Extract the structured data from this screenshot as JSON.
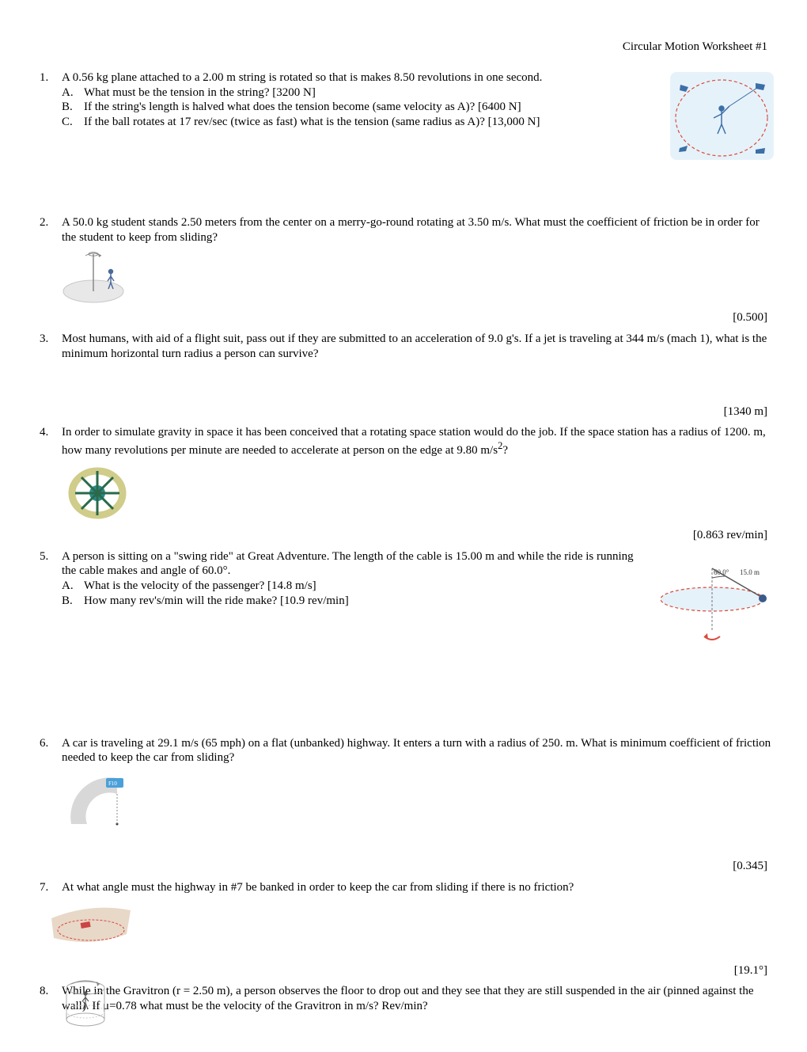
{
  "title": "Circular Motion Worksheet #1",
  "problems": [
    {
      "num": "1.",
      "text": "A 0.56 kg plane attached to a 2.00 m string is rotated so that is makes 8.50 revolutions in one second.",
      "subs": [
        {
          "letter": "A.",
          "text": "What must be the tension in the string?  [3200 N]"
        },
        {
          "letter": "B.",
          "text": "If the string's length is halved what does the tension become (same velocity as A)?  [6400 N]"
        },
        {
          "letter": "C.",
          "text": "If the ball rotates at 17 rev/sec (twice as fast) what is the tension (same radius as A)?  [13,000 N]"
        }
      ]
    },
    {
      "num": "2.",
      "text": "A 50.0 kg student stands 2.50 meters from the center on a merry-go-round rotating at 3.50 m/s. What must the coefficient of friction be in order for the student to keep from sliding?",
      "answer": "[0.500]"
    },
    {
      "num": "3.",
      "text": "Most humans, with aid of a flight suit, pass out if they are submitted to an acceleration of 9.0 g's. If a jet is traveling at 344 m/s (mach 1), what is the minimum horizontal turn radius a person can survive?",
      "answer": "[1340 m]"
    },
    {
      "num": "4.",
      "text_html": "In order to simulate gravity in space it has been conceived that a rotating space station would do the job. If the space station has a radius of 1200. m, how many revolutions per minute are needed to accelerate at person on the edge at 9.80 m/s<sup>2</sup>?",
      "answer": "[0.863 rev/min]"
    },
    {
      "num": "5.",
      "text": "A person is sitting on a \"swing ride\" at Great Adventure. The length of the cable is 15.00 m and while the ride is running the cable makes and angle of 60.0°.",
      "subs": [
        {
          "letter": "A.",
          "text": "What is the velocity of the passenger? [14.8 m/s]"
        },
        {
          "letter": "B.",
          "text": "How many rev's/min will the ride make? [10.9 rev/min]"
        }
      ],
      "fig_labels": {
        "angle": "60.0°",
        "length": "15.0 m"
      }
    },
    {
      "num": "6.",
      "text": "A car is traveling at 29.1 m/s (65 mph) on a flat (unbanked) highway. It enters a turn with a radius of 250. m. What is minimum coefficient of friction needed to keep the car from sliding?",
      "answer": "[0.345]"
    },
    {
      "num": "7.",
      "text": "At what angle must the highway in #7 be banked in order to keep the car from sliding if there is no friction?",
      "answer": "[19.1°]"
    },
    {
      "num": "8.",
      "text": "While in the Gravitron (r = 2.50 m), a person observes the floor to drop out and they see that they are still suspended in the air (pinned against the wall). If μ=0.78 what must be the velocity of the Gravitron in m/s? Rev/min?"
    }
  ],
  "colors": {
    "text": "#000000",
    "bg": "#ffffff",
    "sky": "#d8ecf8",
    "dashred": "#d94a3a",
    "plane": "#3b6fa8",
    "disc": "#e8e8e8",
    "discdark": "#c8c8c8",
    "station_ring": "#d0cc8a",
    "station_core": "#2a8a8a",
    "road": "#d8d8d8",
    "car": "#4aa0d8",
    "track": "#e8d8c8",
    "person": "#4a6a9a"
  }
}
